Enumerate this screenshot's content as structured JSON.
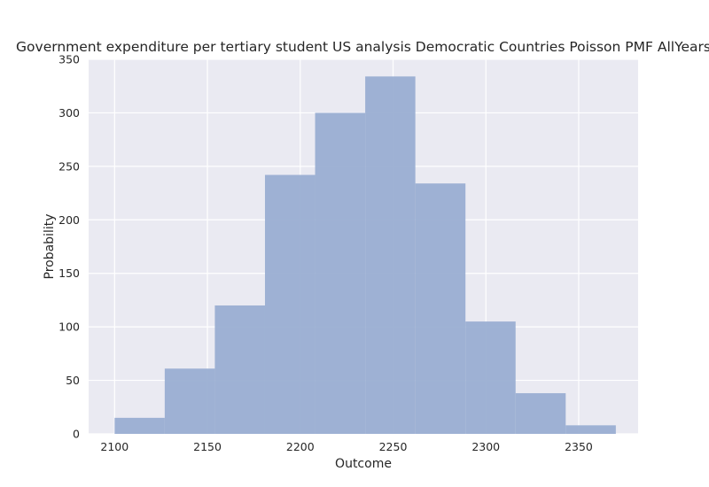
{
  "chart_data": {
    "type": "bar",
    "title": "Government expenditure per tertiary student US analysis Democratic Countries Poisson PMF AllYears",
    "xlabel": "Outcome",
    "ylabel": "Probability",
    "xlim": [
      2086,
      2382
    ],
    "ylim": [
      0,
      350
    ],
    "grid": true,
    "x_ticks": [
      2100,
      2150,
      2200,
      2250,
      2300,
      2350
    ],
    "y_ticks": [
      0,
      50,
      100,
      150,
      200,
      250,
      300,
      350
    ],
    "bins": [
      {
        "start": 2100,
        "end": 2127,
        "value": 15
      },
      {
        "start": 2127,
        "end": 2154,
        "value": 61
      },
      {
        "start": 2154,
        "end": 2181,
        "value": 120
      },
      {
        "start": 2181,
        "end": 2208,
        "value": 242
      },
      {
        "start": 2208,
        "end": 2235,
        "value": 300
      },
      {
        "start": 2235,
        "end": 2262,
        "value": 334
      },
      {
        "start": 2262,
        "end": 2289,
        "value": 234
      },
      {
        "start": 2289,
        "end": 2316,
        "value": 105
      },
      {
        "start": 2316,
        "end": 2343,
        "value": 38
      },
      {
        "start": 2343,
        "end": 2370,
        "value": 8
      }
    ],
    "colors": {
      "bar": "#9aaed2",
      "plot_background": "#eaeaf2",
      "grid": "#ffffff"
    }
  }
}
